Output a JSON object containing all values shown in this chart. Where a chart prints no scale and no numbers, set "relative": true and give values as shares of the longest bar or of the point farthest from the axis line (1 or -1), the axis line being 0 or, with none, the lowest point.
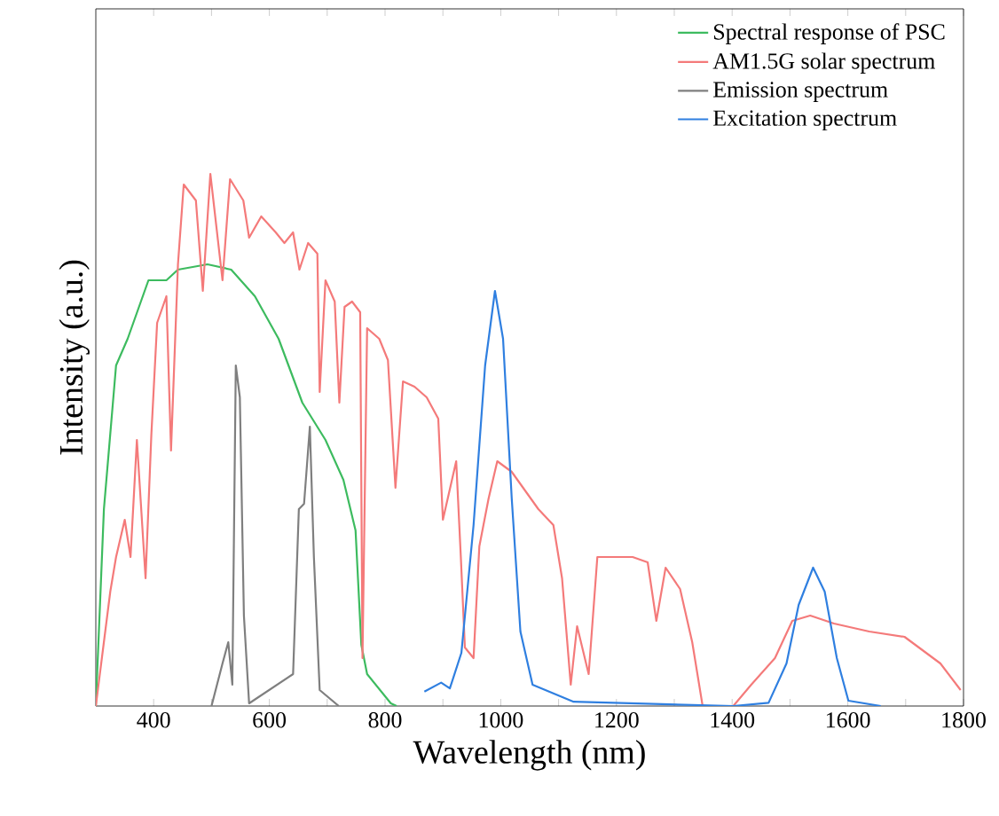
{
  "chart_data": {
    "type": "line",
    "relative": true,
    "xlabel": "Wavelength (nm)",
    "ylabel": "Intensity (a.u.)",
    "xlim": [
      300,
      1800
    ],
    "xticks": [
      400,
      {
        "value": 500,
        "label": null
      },
      600,
      {
        "value": 700,
        "label": null
      },
      800,
      {
        "value": 900,
        "label": null
      },
      1000,
      {
        "value": 1100,
        "label": null
      },
      1200,
      {
        "value": 1300,
        "label": null
      },
      1400,
      {
        "value": 1500,
        "label": null
      },
      1600,
      {
        "value": 1700,
        "label": null
      },
      1800
    ],
    "tick_labels": "x",
    "grid": false,
    "legend": "top right",
    "marker": "none",
    "line_style": "solid",
    "series": [
      {
        "name": "Spectral response of PSC",
        "color": "#3dbb5f",
        "x": [
          300,
          314,
          335,
          355,
          391,
          422,
          442,
          493,
          534,
          575,
          616,
          657,
          697,
          728,
          749,
          759,
          769,
          810,
          820
        ],
        "values": [
          0,
          0.37,
          0.64,
          0.69,
          0.8,
          0.8,
          0.82,
          0.83,
          0.82,
          0.77,
          0.69,
          0.57,
          0.5,
          0.425,
          0.33,
          0.115,
          0.06,
          0.005,
          0
        ]
      },
      {
        "name": "AM1.5G solar spectrum",
        "color": "#f47a7a",
        "x": [
          300,
          325,
          335,
          350,
          360,
          371,
          386,
          396,
          406,
          422,
          430,
          442,
          452,
          473,
          485,
          498,
          519,
          532,
          555,
          565,
          586,
          611,
          626,
          641,
          652,
          667,
          683,
          687,
          697,
          713,
          721,
          730,
          743,
          757,
          761,
          769,
          790,
          805,
          818,
          831,
          851,
          872,
          892,
          900,
          923,
          931,
          938,
          953,
          963,
          979,
          994,
          1019,
          1065,
          1091,
          1106,
          1121,
          1132,
          1152,
          1167,
          1188,
          1228,
          1254,
          1269,
          1285,
          1310,
          1331,
          1349,
          1402,
          1433,
          1474,
          1504,
          1535,
          1576,
          1637,
          1698,
          1760,
          1795
        ],
        "values": [
          0,
          0.215,
          0.28,
          0.35,
          0.28,
          0.5,
          0.24,
          0.51,
          0.72,
          0.77,
          0.48,
          0.83,
          0.98,
          0.95,
          0.78,
          1.0,
          0.8,
          0.99,
          0.95,
          0.88,
          0.92,
          0.89,
          0.87,
          0.89,
          0.82,
          0.87,
          0.85,
          0.59,
          0.8,
          0.76,
          0.57,
          0.75,
          0.76,
          0.74,
          0.09,
          0.71,
          0.69,
          0.65,
          0.41,
          0.61,
          0.6,
          0.58,
          0.54,
          0.35,
          0.46,
          0.28,
          0.11,
          0.09,
          0.3,
          0.39,
          0.46,
          0.44,
          0.37,
          0.34,
          0.24,
          0.04,
          0.15,
          0.06,
          0.28,
          0.28,
          0.28,
          0.27,
          0.16,
          0.26,
          0.22,
          0.12,
          0,
          0,
          0.04,
          0.09,
          0.16,
          0.17,
          0.155,
          0.14,
          0.13,
          0.08,
          0.03
        ]
      },
      {
        "name": "Emission spectrum",
        "color": "#7f7f7f",
        "x": [
          500,
          519,
          529,
          536,
          542,
          549,
          556,
          565,
          641,
          651,
          660,
          670,
          677,
          687,
          720
        ],
        "values": [
          0,
          0.08,
          0.12,
          0.04,
          0.64,
          0.58,
          0.17,
          0.005,
          0.06,
          0.37,
          0.38,
          0.525,
          0.28,
          0.03,
          0
        ]
      },
      {
        "name": "Excitation spectrum",
        "color": "#2f7fe0",
        "x": [
          868,
          897,
          912,
          932,
          953,
          973,
          990,
          1004,
          1019,
          1034,
          1055,
          1126,
          1402,
          1463,
          1494,
          1515,
          1540,
          1560,
          1581,
          1601,
          1657
        ],
        "values": [
          0.027,
          0.044,
          0.033,
          0.1,
          0.34,
          0.64,
          0.78,
          0.69,
          0.39,
          0.14,
          0.04,
          0.008,
          0,
          0.006,
          0.08,
          0.19,
          0.26,
          0.215,
          0.09,
          0.01,
          0
        ]
      }
    ]
  }
}
